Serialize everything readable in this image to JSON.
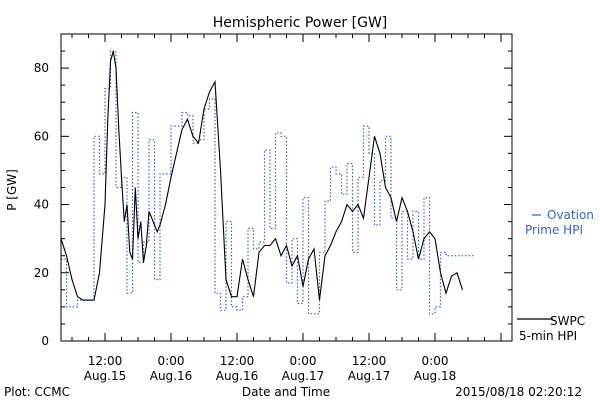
{
  "chart_data": {
    "type": "line",
    "title": "Hemispheric Power [GW]",
    "xlabel": "Date and Time",
    "ylabel": "P [GW]",
    "ylim": [
      0,
      90
    ],
    "xlim_hours": [
      -8,
      74
    ],
    "y_ticks": [
      "0",
      "20",
      "40",
      "60",
      "80"
    ],
    "x_ticks": [
      {
        "hours": 0,
        "time": "12:00",
        "date": "Aug.15"
      },
      {
        "hours": 12,
        "time": "0:00",
        "date": "Aug.16"
      },
      {
        "hours": 24,
        "time": "12:00",
        "date": "Aug.16"
      },
      {
        "hours": 36,
        "time": "0:00",
        "date": "Aug.17"
      },
      {
        "hours": 48,
        "time": "12:00",
        "date": "Aug.17"
      },
      {
        "hours": 60,
        "time": "0:00",
        "date": "Aug.18"
      }
    ],
    "footer_left": "Plot: CCMC",
    "footer_right": "2015/08/18 02:20:12",
    "legend": {
      "ovation_line1": "Ovation",
      "ovation_line2": "Prime HPI",
      "swpc_line1": "SWPC",
      "swpc_line2": "5-min HPI"
    },
    "colors": {
      "ovation": "#3a64c8",
      "swpc": "#000000"
    },
    "series": [
      {
        "name": "Ovation Prime HPI",
        "style": "step-dotted",
        "x": [
          -8,
          -7,
          -5,
          -4,
          -2,
          -1,
          0,
          1,
          2,
          3,
          4,
          5,
          6,
          7,
          8,
          9,
          10,
          11,
          12,
          13,
          14,
          15,
          16,
          17,
          18,
          19,
          20,
          21,
          22,
          23,
          24,
          25,
          26,
          27,
          28,
          29,
          30,
          31,
          32,
          33,
          34,
          35,
          36,
          37,
          38,
          39,
          40,
          41,
          42,
          43,
          44,
          45,
          46,
          47,
          48,
          49,
          50,
          51,
          52,
          53,
          54,
          55,
          56,
          57,
          58,
          59,
          60,
          61,
          62,
          63,
          64,
          65,
          66
        ],
        "values": [
          24,
          10,
          12,
          12,
          60,
          49,
          74,
          85,
          45,
          48,
          14,
          67,
          23,
          29,
          59,
          18,
          49,
          49,
          63,
          63,
          67,
          66,
          58,
          59,
          68,
          71,
          14,
          9,
          35,
          10,
          9,
          13,
          33,
          27,
          29,
          56,
          33,
          61,
          60,
          17,
          30,
          11,
          42,
          8,
          8,
          26,
          41,
          51,
          49,
          43,
          52,
          26,
          48,
          63,
          55,
          34,
          47,
          60,
          36,
          15,
          38,
          24,
          38,
          24,
          42,
          8,
          10,
          26,
          25,
          25,
          25,
          25,
          25
        ]
      },
      {
        "name": "SWPC 5-min HPI",
        "style": "line",
        "x": [
          -8,
          -7,
          -6,
          -5,
          -4,
          -3,
          -2,
          -1,
          0,
          0.5,
          1,
          1.5,
          2,
          2.5,
          3,
          3.5,
          4,
          4.5,
          5,
          5.5,
          6,
          6.5,
          7,
          7.5,
          8,
          8.5,
          9,
          9.5,
          10,
          11,
          12,
          13,
          14,
          15,
          16,
          17,
          18,
          19,
          20,
          21,
          22,
          23,
          24,
          25,
          26,
          27,
          28,
          29,
          30,
          31,
          32,
          33,
          34,
          35,
          36,
          37,
          38,
          39,
          40,
          41,
          42,
          43,
          44,
          45,
          46,
          47,
          48,
          49,
          50,
          51,
          52,
          53,
          54,
          55,
          56,
          57,
          58,
          59,
          60,
          61,
          62,
          63,
          64,
          65
        ],
        "values": [
          30,
          25,
          18,
          13,
          12,
          12,
          12,
          20,
          40,
          65,
          82,
          85,
          80,
          62,
          48,
          35,
          40,
          26,
          24,
          45,
          30,
          35,
          23,
          28,
          38,
          36,
          34,
          32,
          34,
          40,
          48,
          55,
          62,
          65,
          60,
          58,
          68,
          73,
          76,
          50,
          18,
          13,
          13,
          24,
          18,
          13,
          26,
          28,
          28,
          30,
          25,
          28,
          22,
          25,
          16,
          24,
          27,
          12,
          25,
          28,
          32,
          35,
          40,
          38,
          40,
          36,
          48,
          60,
          55,
          45,
          42,
          35,
          42,
          38,
          32,
          24,
          30,
          32,
          30,
          20,
          14,
          19,
          20,
          15
        ]
      }
    ]
  }
}
